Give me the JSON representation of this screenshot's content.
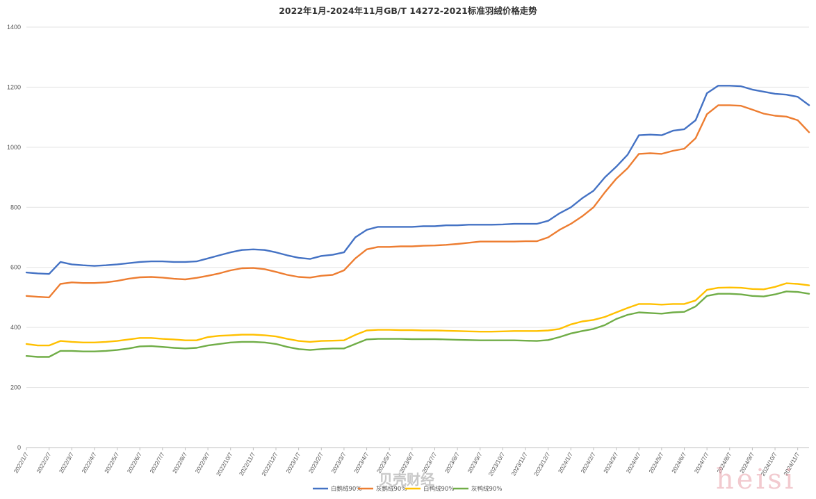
{
  "chart_data": {
    "type": "line",
    "title": "2022年1月-2024年11月GB/T 14272-2021标准羽绒价格走势",
    "xlabel": "",
    "ylabel": "",
    "ylim": [
      0,
      1400
    ],
    "yticks": [
      0,
      200,
      400,
      600,
      800,
      1000,
      1200,
      1400
    ],
    "grid": true,
    "legend_position": "bottom",
    "x": [
      "2022/1/7",
      "2022/1/21",
      "2022/2/7",
      "2022/2/21",
      "2022/3/7",
      "2022/3/21",
      "2022/4/7",
      "2022/4/21",
      "2022/5/7",
      "2022/5/21",
      "2022/6/7",
      "2022/6/21",
      "2022/7/7",
      "2022/7/21",
      "2022/8/7",
      "2022/8/21",
      "2022/9/7",
      "2022/9/21",
      "2022/10/7",
      "2022/10/21",
      "2022/11/7",
      "2022/11/21",
      "2022/12/7",
      "2022/12/21",
      "2023/1/7",
      "2023/1/21",
      "2023/2/7",
      "2023/2/21",
      "2023/3/7",
      "2023/3/21",
      "2023/4/7",
      "2023/4/21",
      "2023/5/7",
      "2023/5/21",
      "2023/6/7",
      "2023/6/21",
      "2023/7/7",
      "2023/7/21",
      "2023/8/7",
      "2023/8/21",
      "2023/9/7",
      "2023/9/21",
      "2023/10/7",
      "2023/10/21",
      "2023/11/7",
      "2023/11/21",
      "2023/12/7",
      "2023/12/21",
      "2024/1/7",
      "2024/1/21",
      "2024/2/7",
      "2024/2/21",
      "2024/3/7",
      "2024/3/21",
      "2024/4/7",
      "2024/4/21",
      "2024/5/7",
      "2024/5/21",
      "2024/6/7",
      "2024/6/21",
      "2024/7/7",
      "2024/7/21",
      "2024/8/7",
      "2024/8/21",
      "2024/9/7",
      "2024/9/21",
      "2024/10/7",
      "2024/10/21",
      "2024/11/7",
      "2024/11/21"
    ],
    "x_tick_labels": [
      "2022/1/7",
      "2022/2/7",
      "2022/3/7",
      "2022/4/7",
      "2022/5/7",
      "2022/6/7",
      "2022/7/7",
      "2022/8/7",
      "2022/9/7",
      "2022/10/7",
      "2022/11/7",
      "2022/12/7",
      "2023/1/7",
      "2023/2/7",
      "2023/3/7",
      "2023/4/7",
      "2023/5/7",
      "2023/6/7",
      "2023/7/7",
      "2023/8/7",
      "2023/9/7",
      "2023/10/7",
      "2023/11/7",
      "2023/12/7",
      "2024/1/7",
      "2024/2/7",
      "2024/3/7",
      "2024/4/7",
      "2024/5/7",
      "2024/6/7",
      "2024/7/7",
      "2024/8/7",
      "2024/9/7",
      "2024/10/7",
      "2024/11/7"
    ],
    "series": [
      {
        "name": "白鹅绒90%",
        "color": "#4472c4",
        "values": [
          583,
          580,
          578,
          618,
          610,
          607,
          605,
          607,
          610,
          614,
          618,
          620,
          620,
          618,
          618,
          620,
          630,
          640,
          650,
          658,
          660,
          658,
          650,
          640,
          632,
          628,
          638,
          642,
          650,
          700,
          725,
          735,
          735,
          735,
          735,
          737,
          737,
          740,
          740,
          742,
          742,
          742,
          743,
          745,
          745,
          745,
          755,
          780,
          800,
          830,
          855,
          900,
          935,
          975,
          1040,
          1042,
          1040,
          1055,
          1060,
          1090,
          1180,
          1205,
          1205,
          1203,
          1192,
          1185,
          1178,
          1175,
          1168,
          1140
        ]
      },
      {
        "name": "灰鹅绒90%",
        "color": "#ed7d31",
        "values": [
          505,
          502,
          500,
          545,
          550,
          548,
          548,
          550,
          555,
          562,
          567,
          568,
          566,
          562,
          560,
          565,
          572,
          580,
          590,
          597,
          598,
          594,
          585,
          575,
          568,
          566,
          572,
          575,
          590,
          630,
          660,
          668,
          668,
          670,
          670,
          672,
          673,
          675,
          678,
          682,
          686,
          686,
          686,
          686,
          687,
          687,
          700,
          725,
          745,
          770,
          800,
          850,
          895,
          930,
          978,
          980,
          978,
          988,
          995,
          1030,
          1110,
          1140,
          1140,
          1138,
          1125,
          1112,
          1105,
          1102,
          1090,
          1050
        ]
      },
      {
        "name": "白鸭绒90%",
        "color": "#ffc000",
        "values": [
          345,
          340,
          340,
          355,
          352,
          350,
          350,
          352,
          355,
          360,
          365,
          365,
          362,
          360,
          357,
          357,
          368,
          372,
          374,
          376,
          376,
          374,
          370,
          362,
          355,
          352,
          355,
          356,
          357,
          375,
          390,
          392,
          392,
          391,
          391,
          390,
          390,
          389,
          388,
          387,
          386,
          386,
          387,
          388,
          388,
          388,
          390,
          395,
          410,
          420,
          425,
          435,
          450,
          465,
          478,
          478,
          476,
          478,
          478,
          490,
          525,
          532,
          533,
          532,
          528,
          527,
          535,
          547,
          545,
          540
        ]
      },
      {
        "name": "灰鸭绒90%",
        "color": "#70ad47",
        "values": [
          305,
          302,
          302,
          322,
          322,
          320,
          320,
          322,
          325,
          330,
          337,
          338,
          335,
          332,
          330,
          332,
          340,
          345,
          350,
          352,
          352,
          350,
          345,
          335,
          328,
          325,
          328,
          330,
          330,
          345,
          360,
          362,
          362,
          362,
          361,
          361,
          361,
          360,
          359,
          358,
          357,
          357,
          357,
          357,
          356,
          355,
          358,
          368,
          380,
          388,
          395,
          408,
          428,
          442,
          450,
          448,
          446,
          450,
          452,
          470,
          505,
          512,
          512,
          510,
          505,
          503,
          510,
          520,
          518,
          512
        ]
      }
    ]
  },
  "watermark": {
    "text": "贝壳财经",
    "signature": "heisi"
  }
}
